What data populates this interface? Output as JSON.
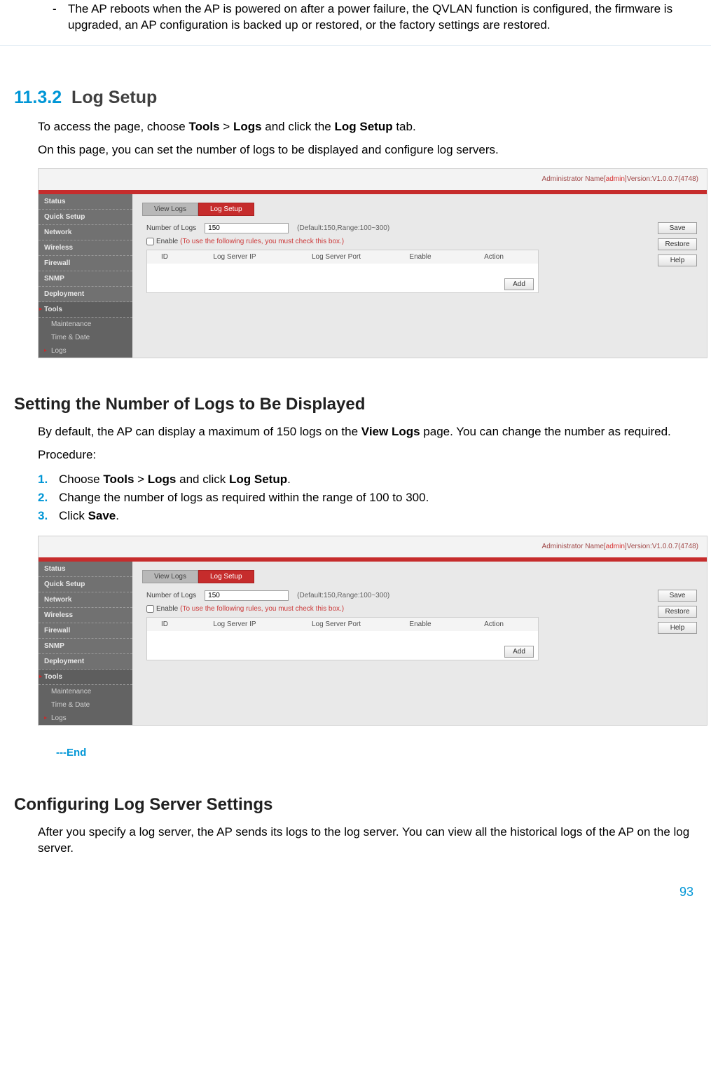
{
  "top_note": {
    "dash": "-",
    "text": "The AP reboots when the AP is powered on after a power failure, the QVLAN function is configured, the firmware is upgraded, an AP configuration is backed up or restored, or the factory settings are restored."
  },
  "section": {
    "number": "11.3.2",
    "title": "Log Setup"
  },
  "intro1_pre": "To access the page, choose ",
  "intro1_b1": "Tools",
  "intro1_mid1": " > ",
  "intro1_b2": "Logs",
  "intro1_mid2": " and click the ",
  "intro1_b3": "Log Setup",
  "intro1_end": " tab.",
  "intro2": "On this page, you can set the number of logs to be displayed and configure log servers.",
  "subhead1": "Setting the Number of Logs to Be Displayed",
  "para1_pre": "By default, the AP can display a maximum of 150 logs on the ",
  "para1_b": "View Logs",
  "para1_end": " page. You can change the number as required.",
  "procedure_label": "Procedure:",
  "steps": [
    {
      "n": "1.",
      "pre": "Choose ",
      "b1": "Tools",
      "mid1": " > ",
      "b2": "Logs",
      "mid2": " and click ",
      "b3": "Log Setup",
      "end": "."
    },
    {
      "n": "2.",
      "text": "Change the number of logs as required within the range of 100 to 300."
    },
    {
      "n": "3.",
      "pre": "Click ",
      "b1": "Save",
      "end": "."
    }
  ],
  "end_marker": "---End",
  "subhead2": "Configuring Log Server Settings",
  "para2": "After you specify a log server, the AP sends its logs to the log server. You can view all the historical logs of the AP on the log server.",
  "page_num": "93",
  "screenshot": {
    "admin_prefix": "Administrator Name[",
    "admin_user": "admin",
    "admin_suffix": "]Version:V1.0.0.7(4748)",
    "nav": [
      "Status",
      "Quick Setup",
      "Network",
      "Wireless",
      "Firewall",
      "SNMP",
      "Deployment"
    ],
    "nav_active_group": "Tools",
    "nav_subs": [
      "Maintenance",
      "Time & Date"
    ],
    "nav_sub_active": "Logs",
    "tab_inactive": "View Logs",
    "tab_active": "Log Setup",
    "numlogs_label": "Number of Logs",
    "numlogs_value": "150",
    "numlogs_hint": "(Default:150,Range:100~300)",
    "enable_label": "Enable",
    "enable_hint": "(To use the following rules, you must check this box.)",
    "th_id": "ID",
    "th_ip": "Log Server IP",
    "th_port": "Log Server Port",
    "th_enable": "Enable",
    "th_action": "Action",
    "btn_save": "Save",
    "btn_restore": "Restore",
    "btn_help": "Help",
    "btn_add": "Add"
  }
}
